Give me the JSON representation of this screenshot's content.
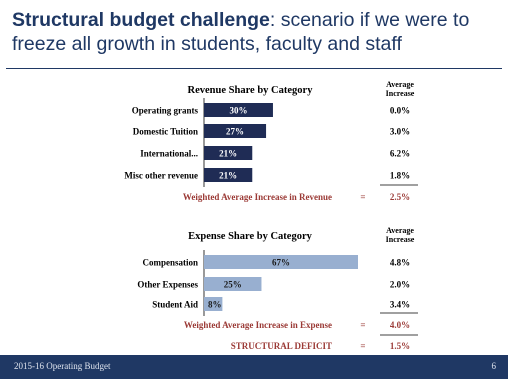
{
  "title_bold": "Structural budget challenge",
  "title_rest": ": scenario if we were to freeze all growth in students, faculty and staff",
  "chart_data": [
    {
      "type": "bar",
      "title": "Revenue Share by Category",
      "categories": [
        "Operating grants",
        "Domestic Tuition",
        "International...",
        "Misc other revenue"
      ],
      "values": [
        30,
        27,
        21,
        21
      ],
      "value_labels": [
        "30%",
        "27%",
        "21%",
        "21%"
      ],
      "value_max": 67,
      "increase_header_lines": [
        "Average",
        "Increase"
      ],
      "increases": [
        "0.0%",
        "3.0%",
        "6.2%",
        "1.8%"
      ],
      "weighted_label": "Weighted Average Increase in Revenue",
      "weighted_eq": "=",
      "weighted_value": "2.5%",
      "bar_color": "#1f2c55",
      "label_color": "#ffffff"
    },
    {
      "type": "bar",
      "title": "Expense Share by Category",
      "categories": [
        "Compensation",
        "Other Expenses",
        "Student Aid"
      ],
      "values": [
        67,
        25,
        8
      ],
      "value_labels": [
        "67%",
        "25%",
        "8%"
      ],
      "value_max": 67,
      "increase_header_lines": [
        "Average",
        "Increase"
      ],
      "increases": [
        "4.8%",
        "2.0%",
        "3.4%"
      ],
      "weighted_label": "Weighted Average Increase in Expense",
      "weighted_eq": "=",
      "weighted_value": "4.0%",
      "bar_color": "#98afd0",
      "label_color": "#1a1a1a"
    }
  ],
  "deficit_label": "STRUCTURAL DEFICIT",
  "deficit_eq": "=",
  "deficit_value": "1.5%",
  "footer_text": "2015-16 Operating Budget",
  "page_number": "6",
  "colors": {
    "navy": "#1f3864",
    "red": "#9b3a36"
  }
}
